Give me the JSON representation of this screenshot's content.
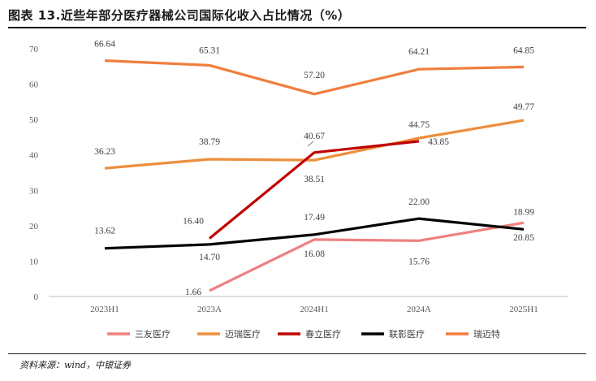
{
  "header": {
    "title": "图表 13.近些年部分医疗器械公司国际化收入占比情况（%）"
  },
  "footer": {
    "source": "资料来源：wind，中银证券"
  },
  "chart_data": {
    "type": "line",
    "title": "图表 13.近些年部分医疗器械公司国际化收入占比情况（%）",
    "xlabel": "",
    "ylabel": "",
    "categories": [
      "2023H1",
      "2023A",
      "2024H1",
      "2024A",
      "2025H1"
    ],
    "ylim": [
      0,
      70
    ],
    "yticks": [
      0,
      10,
      20,
      30,
      40,
      50,
      60,
      70
    ],
    "grid": false,
    "legend_position": "bottom",
    "series": [
      {
        "name": "三友医疗",
        "color": "#F08080",
        "values": [
          null,
          1.66,
          16.08,
          15.76,
          20.85
        ],
        "labels": [
          null,
          "1.66",
          "16.08",
          "15.76",
          "20.85"
        ]
      },
      {
        "name": "迈瑞医疗",
        "color": "#ED8E3C",
        "values": [
          36.23,
          38.79,
          38.51,
          44.75,
          49.77
        ],
        "labels": [
          "36.23",
          "38.79",
          "38.51",
          "44.75",
          "49.77"
        ]
      },
      {
        "name": "春立医疗",
        "color": "#C00000",
        "values": [
          null,
          16.4,
          40.67,
          43.85,
          null
        ],
        "labels": [
          null,
          "16.40",
          "40.67",
          "43.85",
          null
        ]
      },
      {
        "name": "联影医疗",
        "color": "#000000",
        "values": [
          13.62,
          14.7,
          17.49,
          22.0,
          18.99
        ],
        "labels": [
          "13.62",
          "14.70",
          "17.49",
          "22.00",
          "18.99"
        ]
      },
      {
        "name": "瑞迈特",
        "color": "#F07E3E",
        "values": [
          66.64,
          65.31,
          57.2,
          64.21,
          64.85
        ],
        "labels": [
          "66.64",
          "65.31",
          "57.20",
          "64.21",
          "64.85"
        ]
      }
    ]
  }
}
